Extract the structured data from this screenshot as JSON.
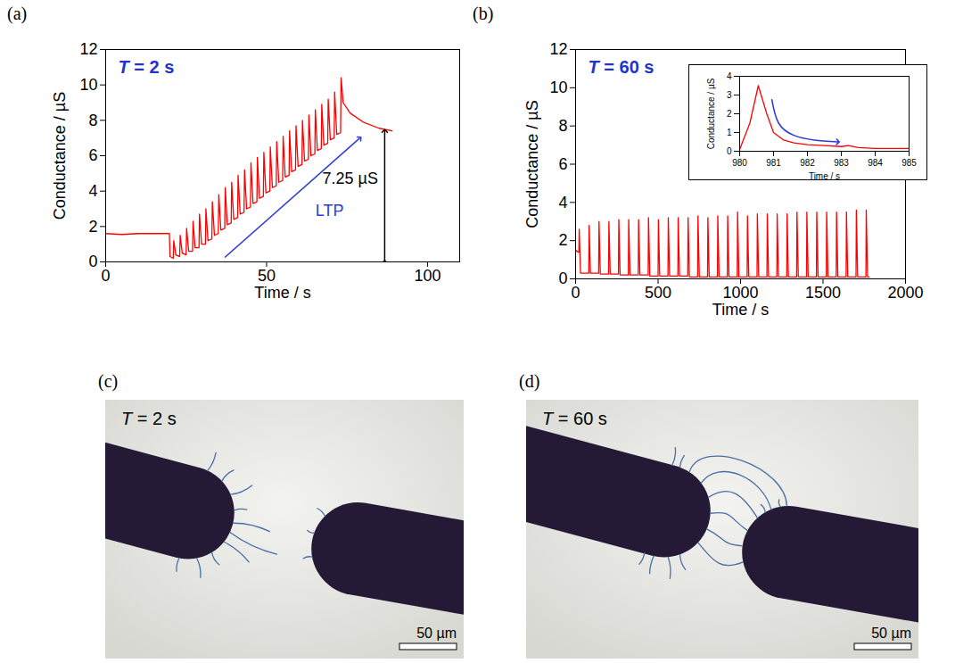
{
  "chart_data": [
    {
      "type": "line",
      "panel_label": "(a)",
      "title": "T = 2 s",
      "x_label": "Time / s",
      "y_label": "Conductance / µS",
      "color": "#ff0000",
      "xlim": [
        0,
        110
      ],
      "xticks": [
        0,
        50,
        100
      ],
      "ylim": [
        0,
        12
      ],
      "yticks": [
        0,
        2,
        4,
        6,
        8,
        10,
        12
      ],
      "x": [
        0,
        5,
        10,
        15,
        19.8,
        20,
        21,
        21.15,
        21.8,
        23,
        23.15,
        23.8,
        25,
        25.15,
        25.8,
        27,
        27.15,
        27.8,
        29,
        29.15,
        29.8,
        31,
        31.15,
        31.8,
        33,
        33.15,
        33.8,
        35,
        35.15,
        35.8,
        37,
        37.15,
        37.8,
        39,
        39.15,
        39.8,
        41,
        41.15,
        41.8,
        43,
        43.15,
        43.8,
        45,
        45.15,
        45.8,
        47,
        47.15,
        47.8,
        49,
        49.15,
        49.8,
        51,
        51.15,
        51.8,
        53,
        53.15,
        53.8,
        55,
        55.15,
        55.8,
        57,
        57.15,
        57.8,
        59,
        59.15,
        59.8,
        61,
        61.15,
        61.8,
        63,
        63.15,
        63.8,
        65,
        65.15,
        65.8,
        67,
        67.15,
        67.8,
        69,
        69.15,
        69.8,
        71,
        71.15,
        71.8,
        73,
        73.15,
        73.8,
        76,
        80,
        85,
        89
      ],
      "values": [
        1.6,
        1.55,
        1.6,
        1.6,
        1.6,
        0.3,
        0.2,
        1.2,
        0.4,
        0.3,
        1.5,
        0.5,
        0.4,
        1.9,
        0.6,
        0.6,
        2.3,
        0.8,
        0.8,
        2.7,
        1.0,
        1.0,
        3.0,
        1.2,
        1.3,
        3.4,
        1.5,
        1.6,
        3.8,
        1.8,
        1.9,
        4.2,
        2.1,
        2.2,
        4.5,
        2.4,
        2.5,
        4.9,
        2.7,
        2.8,
        5.2,
        3.0,
        3.1,
        5.6,
        3.3,
        3.4,
        5.9,
        3.6,
        3.7,
        6.2,
        3.9,
        4.0,
        6.5,
        4.2,
        4.3,
        6.8,
        4.5,
        4.6,
        7.1,
        4.8,
        4.9,
        7.4,
        5.1,
        5.2,
        7.7,
        5.4,
        5.5,
        8.0,
        5.7,
        5.8,
        8.3,
        6.0,
        6.1,
        8.6,
        6.3,
        6.4,
        8.9,
        6.6,
        6.7,
        9.2,
        6.9,
        7.0,
        9.6,
        7.2,
        7.3,
        10.4,
        9.0,
        8.4,
        7.9,
        7.55,
        7.4
      ],
      "annotations": [
        {
          "text": "LTP",
          "x": 69.6,
          "y": 2.9,
          "color": "#2e3bd6",
          "arrow": {
            "x1": 37,
            "y1": 0.25,
            "x2": 79,
            "y2": 7.0
          },
          "marker": "arrow"
        },
        {
          "text": "7.25 µS",
          "x": 76,
          "y": 4.7,
          "color": "#000000",
          "arrow": {
            "x1": 86.7,
            "y1": 0,
            "x2": 86.7,
            "y2": 7.4
          },
          "marker": "double-arrow"
        }
      ]
    },
    {
      "type": "line",
      "panel_label": "(b)",
      "title": "T = 60 s",
      "x_label": "Time / s",
      "y_label": "Conductance / µS",
      "color": "#ff0000",
      "xlim": [
        0,
        2000
      ],
      "xticks": [
        0,
        500,
        1000,
        1500,
        2000
      ],
      "ylim": [
        0,
        12
      ],
      "yticks": [
        0,
        2,
        4,
        6,
        8,
        10,
        12
      ],
      "x": [
        0,
        15,
        20,
        22,
        30,
        80,
        82,
        90,
        140,
        142,
        150,
        200,
        202,
        210,
        260,
        262,
        270,
        320,
        322,
        330,
        380,
        382,
        390,
        440,
        442,
        450,
        500,
        502,
        510,
        560,
        562,
        570,
        620,
        622,
        630,
        680,
        682,
        690,
        740,
        742,
        750,
        800,
        802,
        810,
        860,
        862,
        870,
        920,
        922,
        930,
        980,
        982,
        990,
        1040,
        1042,
        1050,
        1100,
        1102,
        1110,
        1160,
        1162,
        1170,
        1220,
        1222,
        1230,
        1280,
        1282,
        1290,
        1340,
        1342,
        1350,
        1400,
        1402,
        1410,
        1460,
        1462,
        1470,
        1520,
        1522,
        1530,
        1580,
        1582,
        1590,
        1640,
        1642,
        1650,
        1700,
        1702,
        1710,
        1760,
        1762,
        1770,
        1780
      ],
      "values": [
        1.5,
        1.4,
        1.4,
        2.6,
        0.3,
        0.3,
        2.8,
        0.3,
        0.3,
        3.0,
        0.25,
        0.25,
        3.0,
        0.25,
        0.25,
        3.1,
        0.2,
        0.2,
        3.1,
        0.2,
        0.2,
        3.1,
        0.2,
        0.2,
        3.2,
        0.15,
        0.15,
        3.1,
        0.15,
        0.15,
        3.2,
        0.15,
        0.15,
        3.2,
        0.15,
        0.15,
        3.2,
        0.1,
        0.1,
        3.3,
        0.1,
        0.1,
        3.2,
        0.1,
        0.1,
        3.3,
        0.1,
        0.1,
        3.3,
        0.1,
        0.1,
        3.5,
        0.1,
        0.1,
        3.3,
        0.1,
        0.1,
        3.4,
        0.1,
        0.1,
        3.4,
        0.1,
        0.1,
        3.4,
        0.1,
        0.1,
        3.4,
        0.1,
        0.1,
        3.5,
        0.1,
        0.1,
        3.5,
        0.1,
        0.1,
        3.5,
        0.1,
        0.1,
        3.5,
        0.1,
        0.1,
        3.5,
        0.1,
        0.1,
        3.5,
        0.1,
        0.1,
        3.6,
        0.1,
        0.1,
        3.6,
        0.1,
        0.1
      ]
    },
    {
      "type": "line",
      "x_label": "Time / s",
      "y_label": "Conductance / µS",
      "color": "#ff0000",
      "xlim": [
        980,
        985
      ],
      "xticks": [
        980,
        981,
        982,
        983,
        984,
        985
      ],
      "ylim": [
        0,
        4
      ],
      "yticks": [
        0,
        1,
        2,
        3,
        4
      ],
      "x": [
        980,
        980.3,
        980.55,
        980.8,
        981,
        981.3,
        981.6,
        982,
        982.5,
        983,
        983.2,
        983.5,
        984,
        985
      ],
      "values": [
        0.1,
        1.5,
        3.5,
        2.0,
        1.0,
        0.6,
        0.45,
        0.35,
        0.3,
        0.25,
        0.3,
        0.2,
        0.15,
        0.15
      ],
      "annotations": [
        {
          "color": "#2e3bd6",
          "arrow": {
            "points": [
              [
                980.95,
                2.75
              ],
              [
                981.15,
                1.5
              ],
              [
                981.6,
                0.85
              ],
              [
                982.2,
                0.6
              ],
              [
                982.9,
                0.5
              ]
            ]
          },
          "marker": "arrow"
        }
      ]
    }
  ],
  "images": [
    {
      "panel_label": "(c)",
      "label": "T = 2 s",
      "scale_bar": "50 µm"
    },
    {
      "panel_label": "(d)",
      "label": "T = 60 s",
      "scale_bar": "50 µm"
    }
  ]
}
